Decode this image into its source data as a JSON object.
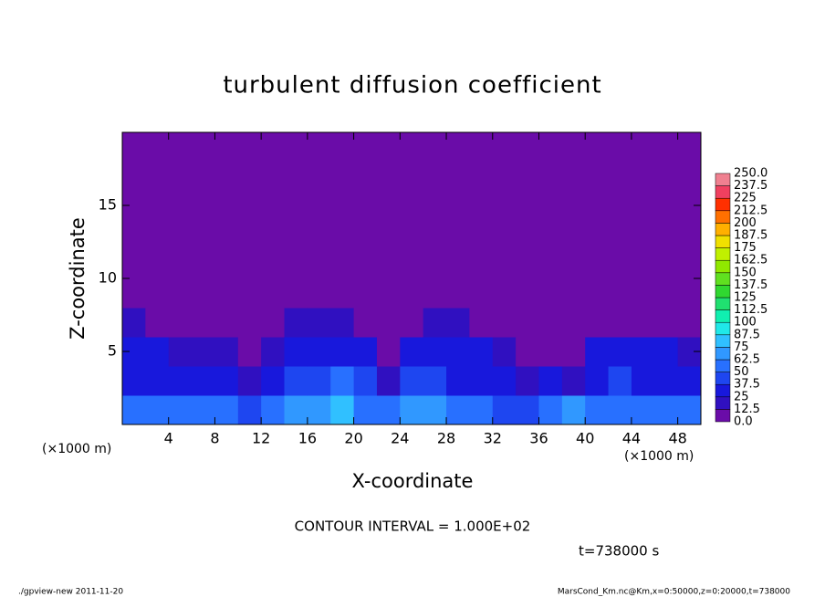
{
  "chart_data": {
    "type": "heatmap",
    "title": "turbulent diffusion coefficient",
    "x_label": "X-coordinate",
    "y_label": "Z-coordinate",
    "x_unit_left": "(×1000 m)",
    "x_unit_right": "(×1000 m)",
    "contour_note": "CONTOUR INTERVAL = 1.000E+02",
    "time_note": "t=738000 s",
    "footer_left": "./gpview-new  2011-11-20",
    "footer_right": "MarsCond_Km.nc@Km,x=0:50000,z=0:20000,t=738000",
    "xlim": [
      0,
      50
    ],
    "ylim": [
      0,
      20
    ],
    "xticks": [
      4,
      8,
      12,
      16,
      20,
      24,
      28,
      32,
      36,
      40,
      44,
      48
    ],
    "yticks": [
      5,
      10,
      15
    ],
    "x": [
      1,
      3,
      5,
      7,
      9,
      11,
      13,
      15,
      17,
      19,
      21,
      23,
      25,
      27,
      29,
      31,
      33,
      35,
      37,
      39,
      41,
      43,
      45,
      47,
      49
    ],
    "z": [
      1,
      3,
      5,
      7,
      9,
      11,
      13,
      15,
      17,
      19
    ],
    "values": [
      [
        55,
        50,
        60,
        55,
        50,
        45,
        60,
        70,
        65,
        75,
        60,
        50,
        70,
        70,
        55,
        50,
        45,
        40,
        50,
        70,
        55,
        60,
        55,
        50,
        55
      ],
      [
        35,
        30,
        35,
        30,
        25,
        20,
        30,
        40,
        45,
        50,
        40,
        20,
        45,
        40,
        35,
        35,
        30,
        15,
        30,
        20,
        35,
        40,
        35,
        35,
        30
      ],
      [
        25,
        25,
        20,
        15,
        15,
        10,
        20,
        30,
        35,
        35,
        25,
        10,
        30,
        30,
        30,
        25,
        20,
        5,
        5,
        10,
        30,
        30,
        30,
        25,
        20
      ],
      [
        15,
        10,
        5,
        0,
        0,
        0,
        5,
        15,
        20,
        15,
        5,
        0,
        10,
        15,
        15,
        10,
        0,
        0,
        0,
        0,
        5,
        10,
        10,
        10,
        10
      ],
      [
        5,
        0,
        0,
        0,
        0,
        0,
        0,
        0,
        5,
        5,
        0,
        0,
        5,
        5,
        0,
        0,
        0,
        0,
        0,
        0,
        0,
        0,
        5,
        5,
        5
      ],
      [
        0,
        0,
        0,
        5,
        0,
        0,
        0,
        0,
        0,
        0,
        0,
        0,
        0,
        0,
        0,
        0,
        0,
        0,
        0,
        0,
        0,
        0,
        0,
        0,
        0
      ],
      [
        0,
        0,
        0,
        0,
        0,
        0,
        0,
        0,
        0,
        0,
        0,
        0,
        0,
        0,
        0,
        0,
        0,
        0,
        0,
        0,
        0,
        0,
        0,
        0,
        0
      ],
      [
        0,
        0,
        0,
        0,
        0,
        0,
        0,
        0,
        5,
        5,
        5,
        0,
        0,
        0,
        0,
        0,
        0,
        0,
        0,
        0,
        0,
        0,
        0,
        0,
        0
      ],
      [
        0,
        0,
        0,
        0,
        0,
        0,
        0,
        0,
        0,
        0,
        0,
        0,
        0,
        0,
        0,
        0,
        0,
        0,
        0,
        0,
        0,
        0,
        0,
        0,
        0
      ],
      [
        0,
        0,
        0,
        0,
        0,
        0,
        0,
        0,
        0,
        0,
        0,
        0,
        0,
        0,
        0,
        0,
        0,
        0,
        0,
        0,
        0,
        0,
        0,
        0,
        0
      ]
    ],
    "levels": [
      {
        "value": 0,
        "label": "0.0"
      },
      12.5,
      25,
      37.5,
      50,
      62.5,
      75,
      87.5,
      100,
      112.5,
      125,
      137.5,
      150,
      162.5,
      175,
      187.5,
      200,
      212.5,
      225,
      237.5,
      {
        "value": 250,
        "label": "250.0"
      }
    ],
    "colors": [
      "#6a0ca8",
      "#3010c0",
      "#1818dc",
      "#1e46f0",
      "#2870ff",
      "#3098ff",
      "#30c0ff",
      "#20e8e8",
      "#10f0b0",
      "#20e070",
      "#30d830",
      "#60e020",
      "#90e800",
      "#c0f000",
      "#f0e000",
      "#ffb000",
      "#ff7000",
      "#ff3000",
      "#f04060",
      "#f08090"
    ]
  }
}
